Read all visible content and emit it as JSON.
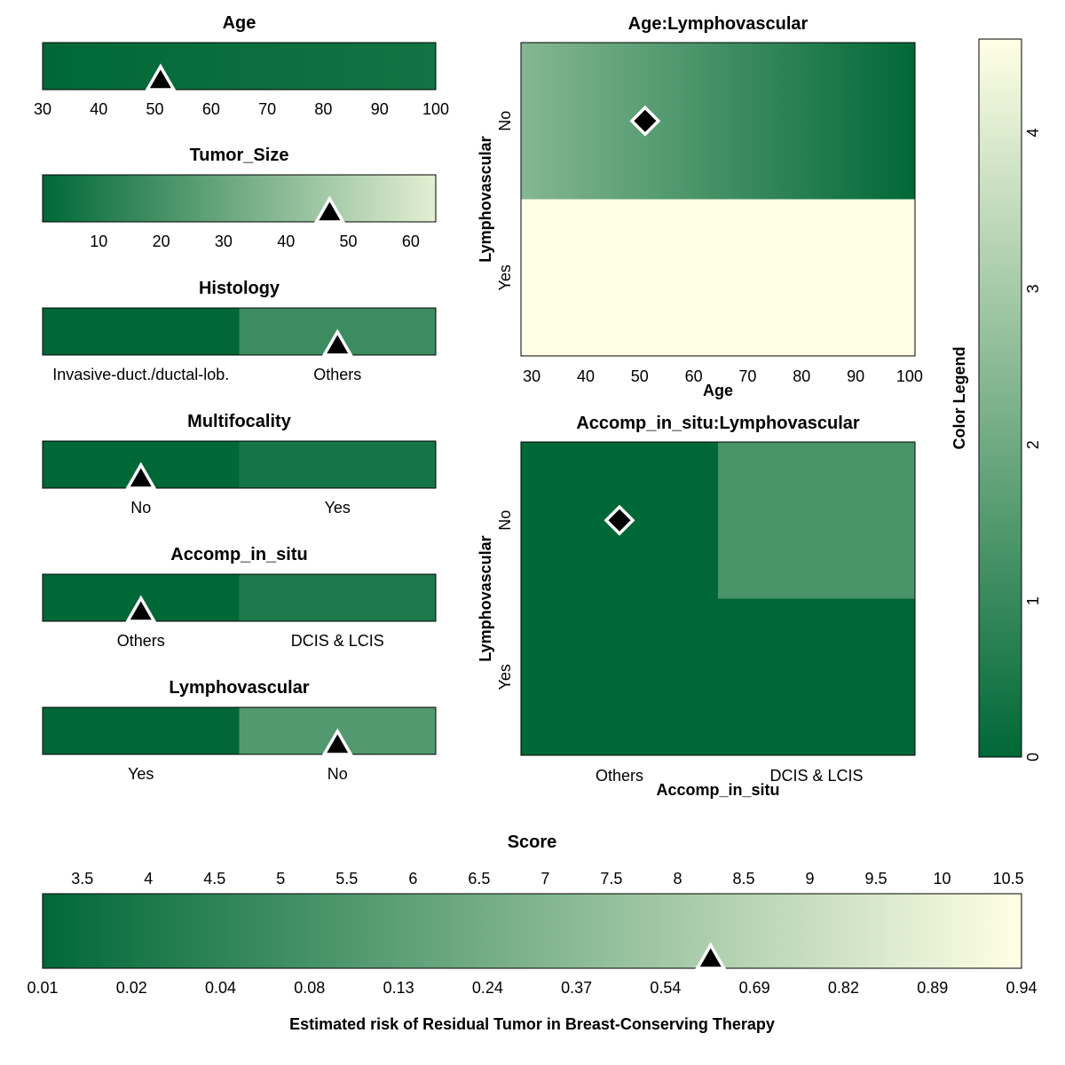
{
  "colors": {
    "dark": "#006837",
    "light": "#FFFFE5",
    "marker_fill": "#000000",
    "marker_stroke": "#FFFFFF",
    "frame": "#000000"
  },
  "chart_data": [
    {
      "id": "age",
      "type": "heatmap",
      "title": "Age",
      "kind": "continuous",
      "ticks": [
        30,
        40,
        50,
        60,
        70,
        80,
        90,
        100
      ],
      "range": [
        30,
        100
      ],
      "color_value_range": [
        0,
        0.35
      ],
      "marker": 51
    },
    {
      "id": "tumor-size",
      "type": "heatmap",
      "title": "Tumor_Size",
      "kind": "continuous",
      "ticks": [
        10,
        20,
        30,
        40,
        50,
        60
      ],
      "range": [
        1,
        64
      ],
      "color_value_range": [
        0,
        4.1
      ],
      "marker": 47
    },
    {
      "id": "histology",
      "type": "heatmap",
      "title": "Histology",
      "kind": "categorical",
      "categories": [
        "Invasive-duct./ductal-lob.",
        "Others"
      ],
      "values": [
        0,
        1.1
      ],
      "marker": "Others"
    },
    {
      "id": "multifocality",
      "type": "heatmap",
      "title": "Multifocality",
      "kind": "categorical",
      "categories": [
        "No",
        "Yes"
      ],
      "values": [
        0,
        0.4
      ],
      "marker": "No"
    },
    {
      "id": "accomp-in-situ",
      "type": "heatmap",
      "title": "Accomp_in_situ",
      "kind": "categorical",
      "categories": [
        "Others",
        "DCIS & LCIS"
      ],
      "values": [
        0,
        0.55
      ],
      "marker": "Others"
    },
    {
      "id": "lymphovascular",
      "type": "heatmap",
      "title": "Lymphovascular",
      "kind": "categorical",
      "categories": [
        "Yes",
        "No"
      ],
      "values": [
        0,
        1.5
      ],
      "marker": "No"
    },
    {
      "id": "age-lymphovascular",
      "type": "heatmap",
      "title": "Age:Lymphovascular",
      "xlabel": "Age",
      "ylabel": "Lymphovascular",
      "x_ticks": [
        30,
        40,
        50,
        60,
        70,
        80,
        90,
        100
      ],
      "x_range": [
        28,
        101
      ],
      "y_categories": [
        "No",
        "Yes"
      ],
      "rows": [
        {
          "category": "No",
          "value_at_x_min": 2.4,
          "value_at_x_max": 0
        },
        {
          "category": "Yes",
          "value_at_x_min": 4.6,
          "value_at_x_max": 4.6
        }
      ],
      "marker": {
        "x": 51,
        "y": "No"
      }
    },
    {
      "id": "accomp-lymphovascular",
      "type": "heatmap",
      "title": "Accomp_in_situ:Lymphovascular",
      "xlabel": "Accomp_in_situ",
      "ylabel": "Lymphovascular",
      "x_categories": [
        "Others",
        "DCIS & LCIS"
      ],
      "y_categories": [
        "No",
        "Yes"
      ],
      "cells": [
        [
          0,
          1.3
        ],
        [
          0,
          0
        ]
      ],
      "marker": {
        "x": "Others",
        "y": "No"
      }
    },
    {
      "id": "color-legend",
      "type": "heatmap",
      "title": "Color Legend",
      "ticks": [
        0,
        1,
        2,
        3,
        4
      ],
      "range": [
        0,
        4.6
      ]
    },
    {
      "id": "score",
      "type": "heatmap",
      "title": "Score",
      "score_ticks": [
        3.5,
        4,
        4.5,
        5,
        5.5,
        6,
        6.5,
        7,
        7.5,
        8,
        8.5,
        9,
        9.5,
        10,
        10.5
      ],
      "score_range": [
        3.2,
        10.6
      ],
      "risk_ticks": [
        0.01,
        0.02,
        0.04,
        0.08,
        0.13,
        0.24,
        0.37,
        0.54,
        0.69,
        0.82,
        0.89,
        0.94
      ],
      "xlabel": "Estimated risk of Residual Tumor in Breast-Conserving Therapy",
      "marker": 8.25
    }
  ]
}
